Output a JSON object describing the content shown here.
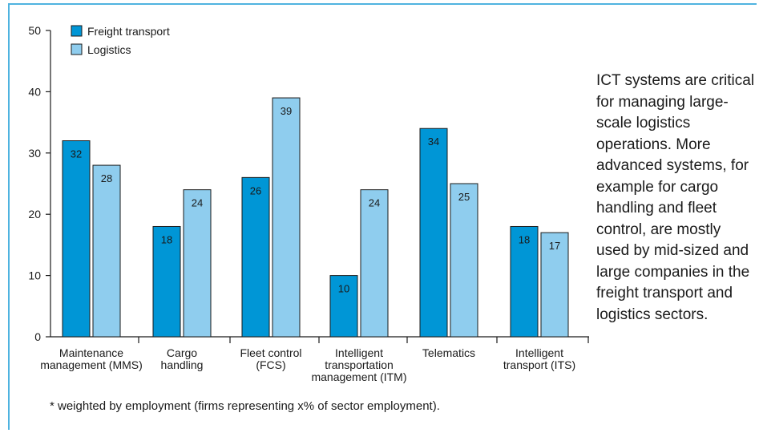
{
  "chart_data": {
    "type": "bar",
    "categories": [
      [
        "Maintenance",
        "management (MMS)"
      ],
      [
        "Cargo",
        "handling"
      ],
      [
        "Fleet control",
        "(FCS)"
      ],
      [
        "Intelligent",
        "transportation",
        "management (ITM)"
      ],
      [
        "Telematics"
      ],
      [
        "Intelligent",
        "transport (ITS)"
      ]
    ],
    "series": [
      {
        "name": "Freight transport",
        "values": [
          32,
          18,
          26,
          10,
          34,
          18
        ],
        "color": "#0096d6"
      },
      {
        "name": "Logistics",
        "values": [
          28,
          24,
          39,
          24,
          25,
          17
        ],
        "color": "#8fcdee"
      }
    ],
    "ylim": [
      0,
      50
    ],
    "yticks": [
      0,
      10,
      20,
      30,
      40,
      50
    ],
    "legend_position": "top-left",
    "grid": false
  },
  "side_text": "ICT systems are critical for managing large-scale logistics operations. More advanced systems, for example for cargo handling and fleet control, are mostly used by mid-sized and large companies in the freight transport and logistics sectors.",
  "footnote": "* weighted by employment (firms representing x% of sector employment).",
  "colors": {
    "frame": "#4fb3e0",
    "bar_stroke": "#1a1a1a"
  }
}
